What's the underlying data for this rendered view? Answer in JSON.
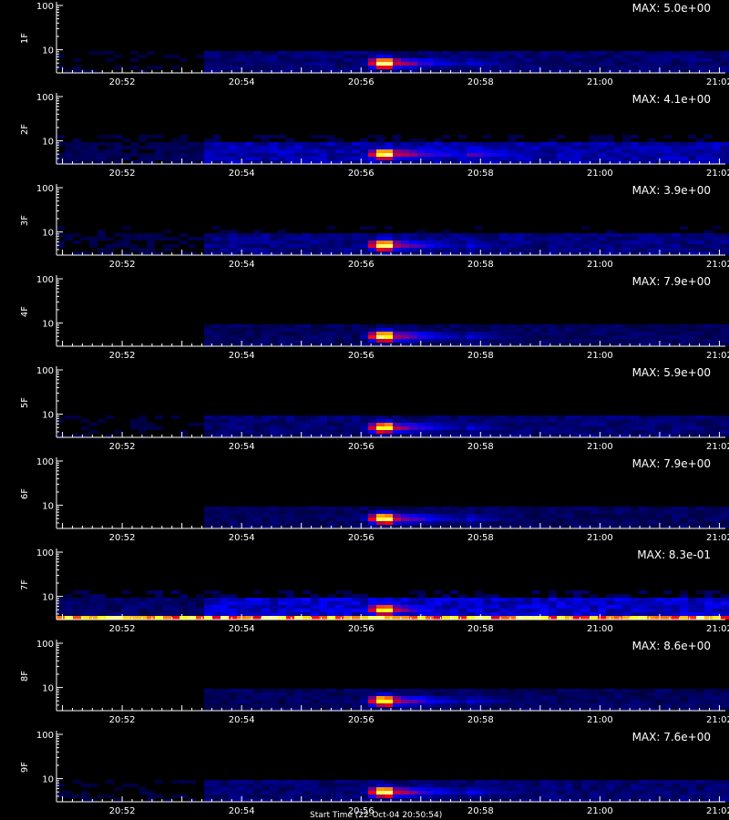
{
  "chart_data": {
    "type": "heatmap",
    "x_ticks": [
      "20:52",
      "20:54",
      "20:56",
      "20:58",
      "21:00",
      "21:02"
    ],
    "x_tick_minutes": [
      52,
      54,
      56,
      58,
      60,
      62
    ],
    "x_range_minutes": [
      50.9,
      62.1
    ],
    "y_scale": "log",
    "y_ticks": [
      "100",
      "10"
    ],
    "y_range": [
      3,
      110
    ],
    "colormap": [
      "#000000",
      "#0000ff",
      "#ff0000",
      "#ffff00",
      "#ffffff"
    ],
    "panels": [
      {
        "label": "1F",
        "max_label": "MAX: 5.0e+00",
        "event_intensity": 1.0,
        "width": 0.11,
        "background": 0.12
      },
      {
        "label": "2F",
        "max_label": "MAX: 4.1e+00",
        "event_intensity": 0.95,
        "width": 0.16,
        "background": 0.18
      },
      {
        "label": "3F",
        "max_label": "MAX: 3.9e+00",
        "event_intensity": 0.95,
        "width": 0.11,
        "background": 0.14
      },
      {
        "label": "4F",
        "max_label": "MAX: 7.9e+00",
        "event_intensity": 0.95,
        "width": 0.11,
        "background": 0.1
      },
      {
        "label": "5F",
        "max_label": "MAX: 5.9e+00",
        "event_intensity": 0.95,
        "width": 0.11,
        "background": 0.12
      },
      {
        "label": "6F",
        "max_label": "MAX: 7.9e+00",
        "event_intensity": 0.95,
        "width": 0.11,
        "background": 0.1
      },
      {
        "label": "7F",
        "max_label": "MAX: 8.3e-01",
        "event_intensity": 0.9,
        "width": 0.1,
        "background": 0.22,
        "noise_band": true
      },
      {
        "label": "8F",
        "max_label": "MAX: 8.6e+00",
        "event_intensity": 0.95,
        "width": 0.11,
        "background": 0.1
      },
      {
        "label": "9F",
        "max_label": "MAX: 7.6e+00",
        "event_intensity": 0.95,
        "width": 0.12,
        "background": 0.12
      }
    ]
  },
  "footer_text": "Start Time (22-Oct-04 20:50:54)"
}
